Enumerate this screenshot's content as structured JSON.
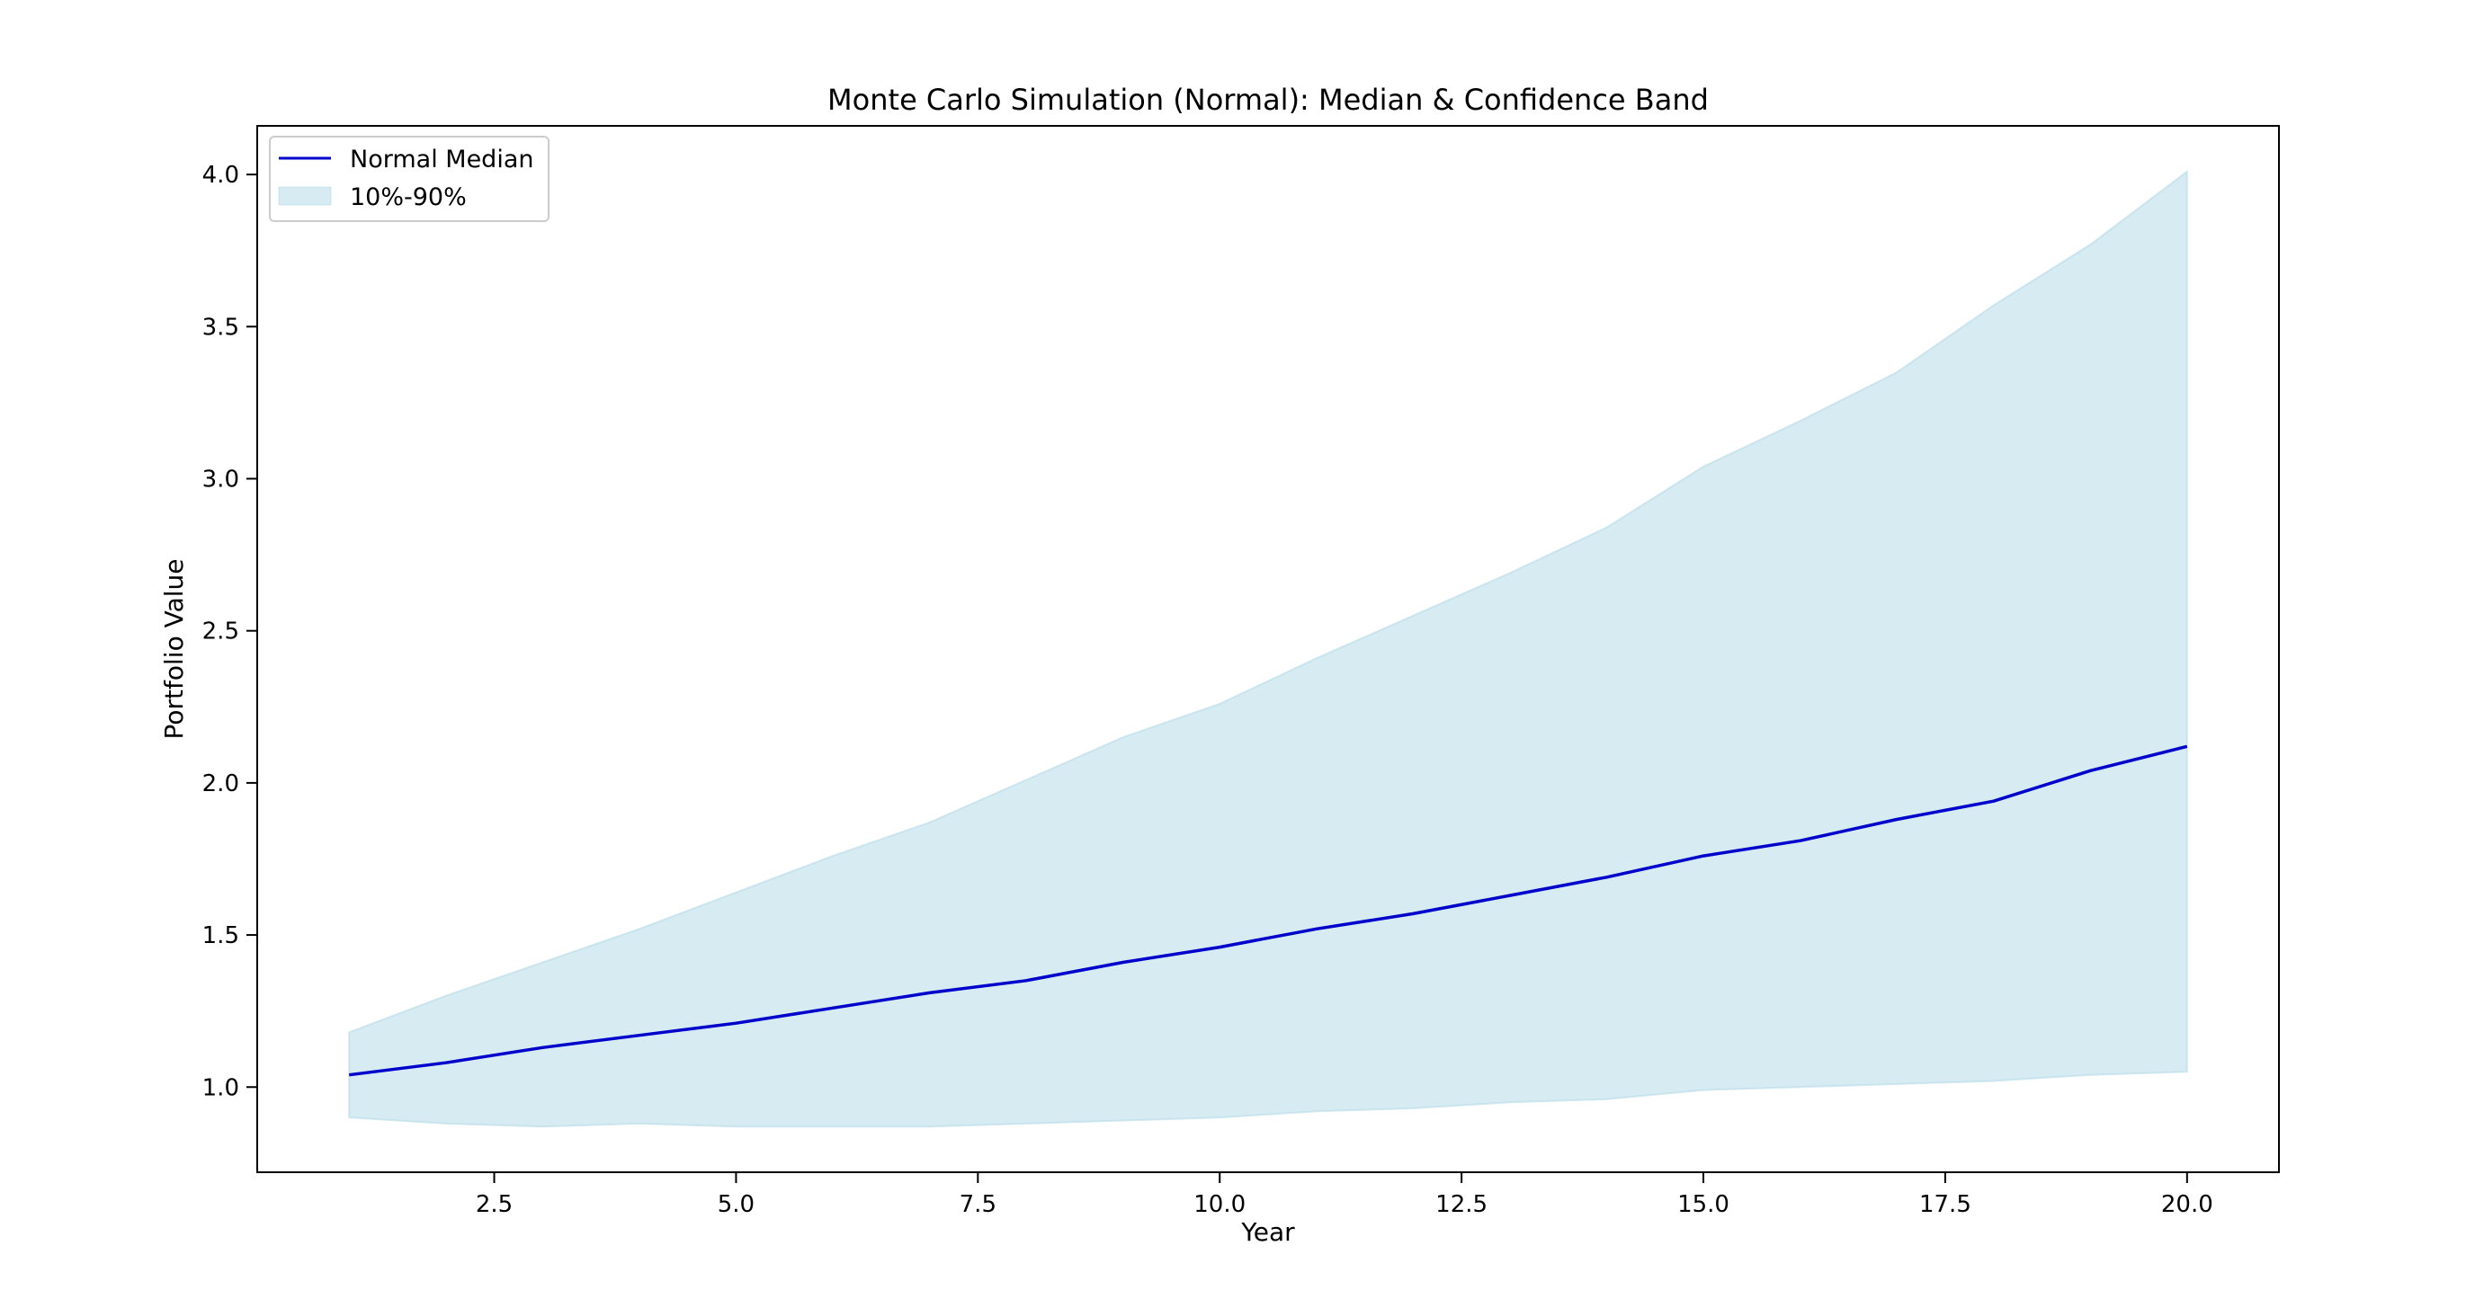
{
  "chart_data": {
    "type": "line",
    "title": "Monte Carlo Simulation (Normal): Median & Confidence Band",
    "xlabel": "Year",
    "ylabel": "Portfolio Value",
    "xlim": [
      0.05,
      20.95
    ],
    "ylim": [
      0.72,
      4.16
    ],
    "xticks": [
      2.5,
      5.0,
      7.5,
      10.0,
      12.5,
      15.0,
      17.5,
      20.0
    ],
    "xtick_labels": [
      "2.5",
      "5.0",
      "7.5",
      "10.0",
      "12.5",
      "15.0",
      "17.5",
      "20.0"
    ],
    "yticks": [
      1.0,
      1.5,
      2.0,
      2.5,
      3.0,
      3.5,
      4.0
    ],
    "ytick_labels": [
      "1.0",
      "1.5",
      "2.0",
      "2.5",
      "3.0",
      "3.5",
      "4.0"
    ],
    "x": [
      1,
      2,
      3,
      4,
      5,
      6,
      7,
      8,
      9,
      10,
      11,
      12,
      13,
      14,
      15,
      16,
      17,
      18,
      19,
      20
    ],
    "series": [
      {
        "name": "Normal Median",
        "kind": "line",
        "color": "#0000cc",
        "values": [
          1.04,
          1.08,
          1.13,
          1.17,
          1.21,
          1.26,
          1.31,
          1.35,
          1.41,
          1.46,
          1.52,
          1.57,
          1.63,
          1.69,
          1.76,
          1.81,
          1.88,
          1.94,
          2.04,
          2.12
        ]
      },
      {
        "name": "10%-90%",
        "kind": "band",
        "color": "#add8e6",
        "lower": [
          0.9,
          0.88,
          0.87,
          0.88,
          0.87,
          0.87,
          0.87,
          0.88,
          0.89,
          0.9,
          0.92,
          0.93,
          0.95,
          0.96,
          0.99,
          1.0,
          1.01,
          1.02,
          1.04,
          1.05
        ],
        "upper": [
          1.18,
          1.3,
          1.41,
          1.52,
          1.64,
          1.76,
          1.87,
          2.01,
          2.15,
          2.26,
          2.41,
          2.55,
          2.69,
          2.84,
          3.04,
          3.19,
          3.35,
          3.57,
          3.77,
          4.01
        ]
      }
    ],
    "legend": {
      "position": "top-left",
      "entries": [
        "Normal Median",
        "10%-90%"
      ]
    }
  }
}
